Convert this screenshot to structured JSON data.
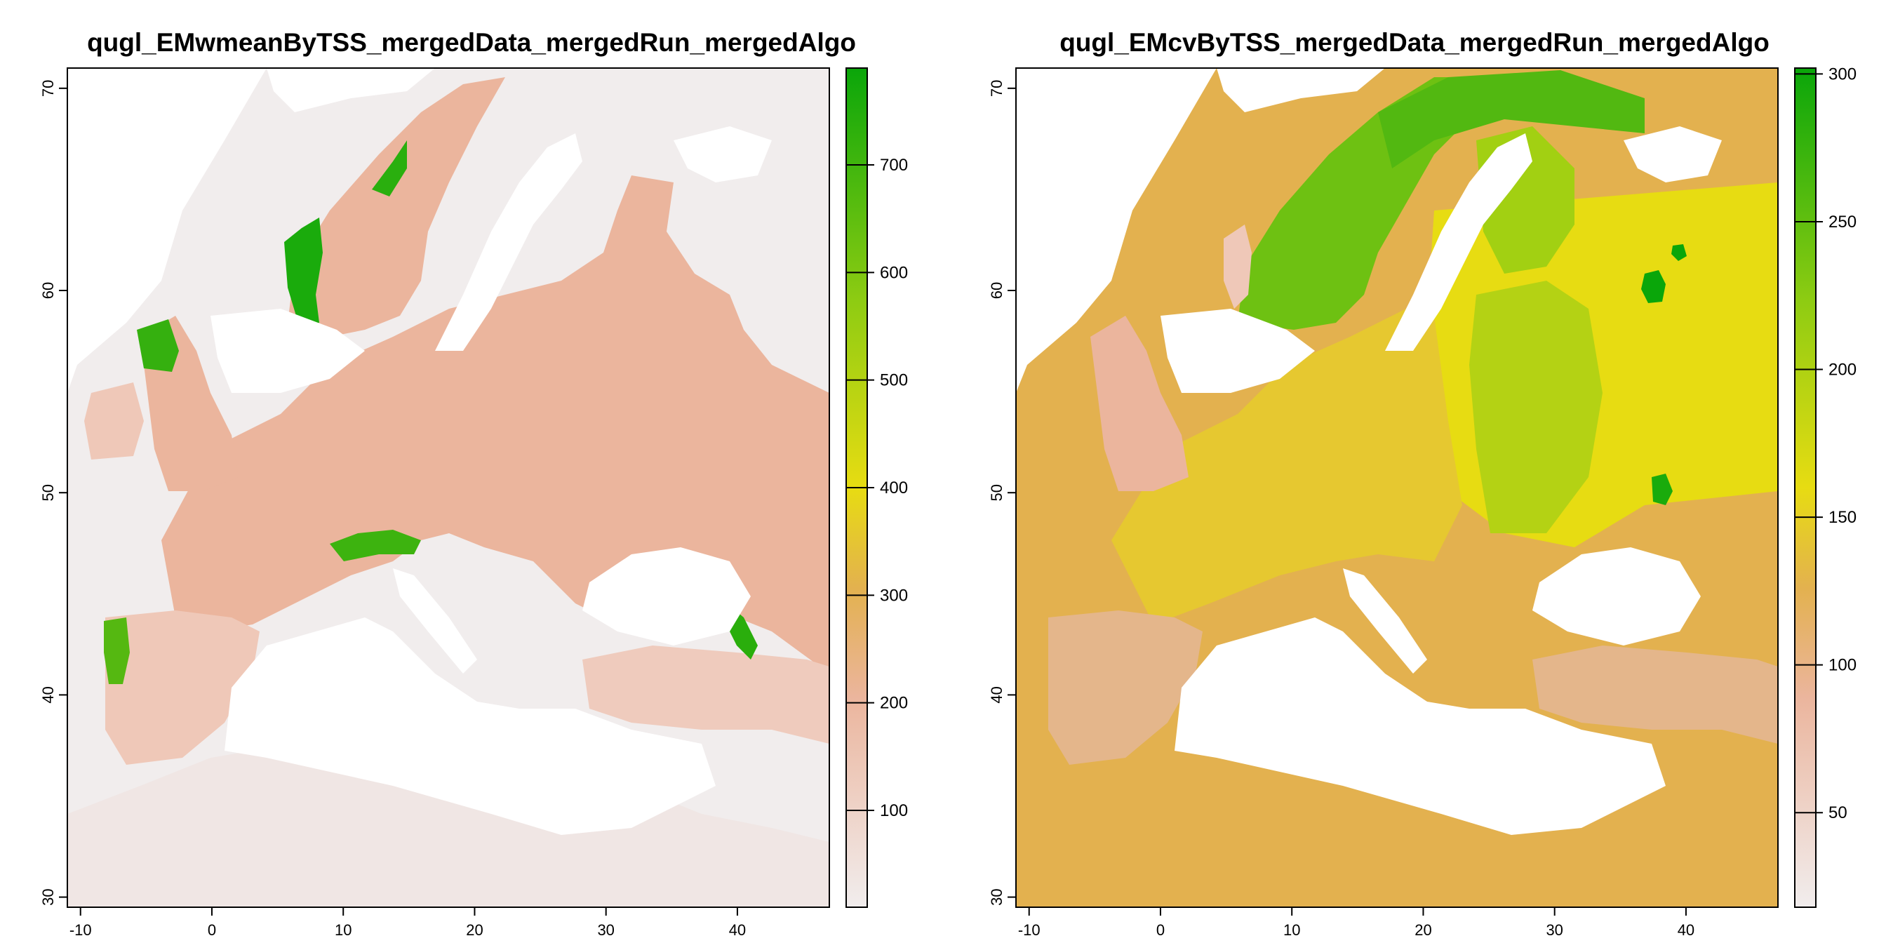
{
  "palette": {
    "water": "#ffffff",
    "low": "#f1eded",
    "mid_low": "#ebb59d",
    "mid": "#e3b14f",
    "yellow": "#e7dc12",
    "green_light": "#8fcc12",
    "green": "#0aa60a"
  },
  "chart_data": [
    {
      "type": "raster-map",
      "title": "qugl_EMwmeanByTSS_mergedData_mergedRun_mergedAlgo",
      "xlim": [
        -11,
        47
      ],
      "ylim": [
        29.5,
        71
      ],
      "x_ticks": [
        -10,
        0,
        10,
        20,
        30,
        40
      ],
      "x_tick_labels": [
        "-10",
        "0",
        "10",
        "20",
        "30",
        "40"
      ],
      "y_ticks": [
        30,
        40,
        50,
        60,
        70
      ],
      "y_tick_labels": [
        "30",
        "40",
        "50",
        "60",
        "70"
      ],
      "legend": {
        "range": [
          10,
          790
        ],
        "ticks": [
          100,
          200,
          300,
          400,
          500,
          600,
          700
        ],
        "tick_labels": [
          "100",
          "200",
          "300",
          "400",
          "500",
          "600",
          "700"
        ]
      }
    },
    {
      "type": "raster-map",
      "title": "qugl_EMcvByTSS_mergedData_mergedRun_mergedAlgo",
      "xlim": [
        -11,
        47
      ],
      "ylim": [
        29.5,
        71
      ],
      "x_ticks": [
        -10,
        0,
        10,
        20,
        30,
        40
      ],
      "x_tick_labels": [
        "-10",
        "0",
        "10",
        "20",
        "30",
        "40"
      ],
      "y_ticks": [
        30,
        40,
        50,
        60,
        70
      ],
      "y_tick_labels": [
        "30",
        "40",
        "50",
        "60",
        "70"
      ],
      "legend": {
        "range": [
          18,
          302
        ],
        "ticks": [
          50,
          100,
          150,
          200,
          250,
          300
        ],
        "tick_labels": [
          "50",
          "100",
          "150",
          "200",
          "250",
          "300"
        ]
      }
    }
  ]
}
